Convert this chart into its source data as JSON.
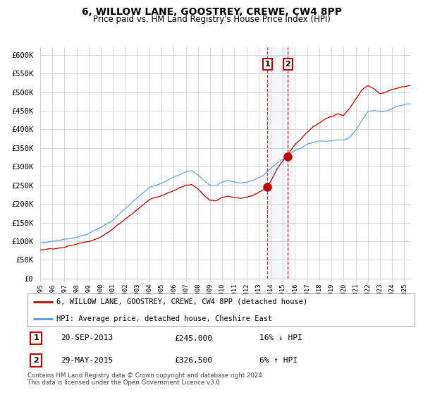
{
  "title": "6, WILLOW LANE, GOOSTREY, CREWE, CW4 8PP",
  "subtitle": "Price paid vs. HM Land Registry's House Price Index (HPI)",
  "ylabel_ticks": [
    "£0",
    "£50K",
    "£100K",
    "£150K",
    "£200K",
    "£250K",
    "£300K",
    "£350K",
    "£400K",
    "£450K",
    "£500K",
    "£550K",
    "£600K"
  ],
  "ytick_values": [
    0,
    50000,
    100000,
    150000,
    200000,
    250000,
    300000,
    350000,
    400000,
    450000,
    500000,
    550000,
    600000
  ],
  "hpi_color": "#5b9bd5",
  "price_color": "#c00000",
  "transaction1": {
    "date_num": 2013.72,
    "price": 245000,
    "label": "1"
  },
  "transaction2": {
    "date_num": 2015.41,
    "price": 326500,
    "label": "2"
  },
  "legend_line1": "6, WILLOW LANE, GOOSTREY, CREWE, CW4 8PP (detached house)",
  "legend_line2": "HPI: Average price, detached house, Cheshire East",
  "table_row1": [
    "1",
    "20-SEP-2013",
    "£245,000",
    "16% ↓ HPI"
  ],
  "table_row2": [
    "2",
    "29-MAY-2015",
    "£326,500",
    "6% ↑ HPI"
  ],
  "footnote": "Contains HM Land Registry data © Crown copyright and database right 2024.\nThis data is licensed under the Open Government Licence v3.0.",
  "background_color": "#ffffff",
  "grid_color": "#d0d0d0",
  "xmin": 1995,
  "xmax": 2025.5,
  "ymin": 0,
  "ymax": 600000
}
